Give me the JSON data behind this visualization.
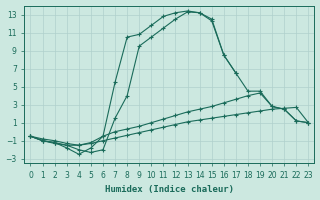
{
  "xlabel": "Humidex (Indice chaleur)",
  "bg_color": "#cce8e0",
  "grid_color": "#b0d0cc",
  "line_color": "#1a6b5a",
  "xlim": [
    -0.5,
    23.5
  ],
  "ylim": [
    -3.5,
    14.0
  ],
  "xticks": [
    0,
    1,
    2,
    3,
    4,
    5,
    6,
    7,
    8,
    9,
    10,
    11,
    12,
    13,
    14,
    15,
    16,
    17,
    18,
    19,
    20,
    21,
    22,
    23
  ],
  "yticks": [
    -3,
    -1,
    1,
    3,
    5,
    7,
    9,
    11,
    13
  ],
  "series": [
    {
      "x": [
        0,
        1,
        2,
        3,
        4,
        5,
        6,
        7,
        8,
        9,
        10,
        11,
        12,
        13,
        14,
        15,
        16,
        17,
        18,
        19,
        20,
        21,
        22,
        23
      ],
      "y": [
        -0.5,
        -1.0,
        -1.3,
        -1.5,
        -1.5,
        -1.3,
        -1.0,
        -0.7,
        -0.4,
        -0.1,
        0.2,
        0.5,
        0.8,
        1.1,
        1.3,
        1.5,
        1.7,
        1.9,
        2.1,
        2.3,
        2.5,
        2.6,
        2.7,
        1.0
      ]
    },
    {
      "x": [
        0,
        1,
        2,
        3,
        4,
        5,
        6,
        7,
        8,
        9,
        10,
        11,
        12,
        13,
        14,
        15,
        16,
        17,
        18,
        19,
        20,
        21,
        22,
        23
      ],
      "y": [
        -0.5,
        -0.8,
        -1.0,
        -1.3,
        -1.5,
        -1.2,
        -0.5,
        0.0,
        0.3,
        0.6,
        1.0,
        1.4,
        1.8,
        2.2,
        2.5,
        2.8,
        3.2,
        3.6,
        4.0,
        4.3,
        2.8,
        2.5,
        1.2,
        1.0
      ]
    },
    {
      "x": [
        0,
        1,
        2,
        3,
        4,
        5,
        6,
        7,
        8,
        9,
        10,
        11,
        12,
        13,
        14,
        15,
        16,
        17,
        18,
        19,
        20,
        21,
        22,
        23
      ],
      "y": [
        -0.5,
        -1.0,
        -1.2,
        -1.8,
        -2.5,
        -1.8,
        -0.5,
        5.5,
        10.5,
        10.8,
        11.8,
        12.8,
        13.2,
        13.4,
        13.2,
        12.3,
        8.5,
        6.5,
        null,
        null,
        null,
        null,
        null,
        null
      ]
    },
    {
      "x": [
        0,
        1,
        2,
        3,
        4,
        5,
        6,
        7,
        8,
        9,
        10,
        11,
        12,
        13,
        14,
        15,
        16,
        17,
        18,
        19,
        20,
        21,
        22,
        23
      ],
      "y": [
        -0.5,
        -1.0,
        -1.2,
        -1.5,
        -2.0,
        -2.3,
        -2.0,
        1.5,
        4.0,
        9.5,
        10.5,
        11.5,
        12.5,
        13.3,
        13.2,
        12.5,
        8.5,
        6.5,
        4.5,
        4.5,
        2.8,
        2.5,
        1.2,
        1.0
      ]
    }
  ]
}
